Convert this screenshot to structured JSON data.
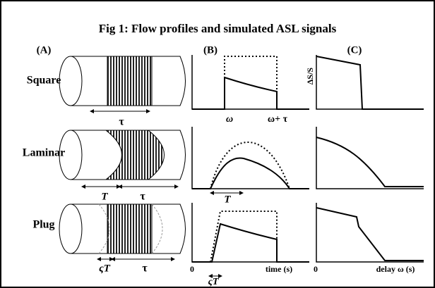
{
  "title": "Fig 1: Flow profiles and simulated ASL signals",
  "panels": [
    "(A)",
    "(B)",
    "(C)"
  ],
  "rows": [
    {
      "label": "Square",
      "a_labels": [
        "τ"
      ],
      "b_labels": [
        "ω",
        "ω+ τ"
      ]
    },
    {
      "label": "Laminar",
      "a_labels": [
        "T",
        "τ"
      ],
      "b_labels": [
        "T"
      ]
    },
    {
      "label": "Plug",
      "a_labels": [
        "ςT",
        "τ"
      ],
      "b_labels": [
        "ςT"
      ]
    }
  ],
  "axes": {
    "b_x_origin": "0",
    "b_x_label": "time (s)",
    "c_y_label": "ΔS/S",
    "c_x_origin": "0",
    "c_x_label": "delay ω (s)"
  }
}
